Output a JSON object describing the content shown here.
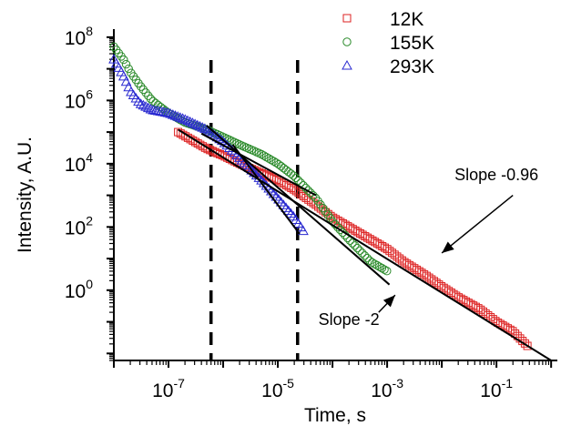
{
  "chart_data": {
    "type": "scatter",
    "title": "",
    "xlabel": "Time, s",
    "ylabel": "Intensity, A.U.",
    "x_scale": "log",
    "y_scale": "log",
    "xlim": [
      1e-08,
      1.3
    ],
    "ylim": [
      0.006,
      180000000.0
    ],
    "x_ticks": [
      {
        "value": 1e-07,
        "base": "10",
        "exp": "-7"
      },
      {
        "value": 1e-05,
        "base": "10",
        "exp": "-5"
      },
      {
        "value": 0.001,
        "base": "10",
        "exp": "-3"
      },
      {
        "value": 0.1,
        "base": "10",
        "exp": "-1"
      }
    ],
    "y_ticks": [
      {
        "value": 1,
        "base": "10",
        "exp": "0"
      },
      {
        "value": 100,
        "base": "10",
        "exp": "2"
      },
      {
        "value": 10000,
        "base": "10",
        "exp": "4"
      },
      {
        "value": 1000000,
        "base": "10",
        "exp": "6"
      },
      {
        "value": 100000000,
        "base": "10",
        "exp": "8"
      }
    ],
    "legend_position": "top-right",
    "grid": false,
    "series": [
      {
        "name": "12K",
        "marker": "square",
        "color": "#dd2222",
        "x": [
          1.5e-07,
          3e-07,
          5e-07,
          1e-06,
          2e-06,
          5e-06,
          1e-05,
          2e-05,
          5e-05,
          0.0001,
          0.0002,
          0.0005,
          0.001,
          0.002,
          0.005,
          0.01,
          0.02,
          0.05,
          0.1,
          0.2,
          0.4
        ],
        "y": [
          100000,
          50000,
          30000,
          18000,
          10000,
          5000,
          3000,
          1500,
          500,
          200,
          100,
          40,
          20,
          8,
          3,
          1.3,
          0.6,
          0.25,
          0.1,
          0.05,
          0.015
        ]
      },
      {
        "name": "155K",
        "marker": "circle",
        "color": "#2a8a2a",
        "x": [
          1e-08,
          1.5e-08,
          2e-08,
          3e-08,
          5e-08,
          1e-07,
          2e-07,
          5e-07,
          1e-06,
          2e-06,
          5e-06,
          1e-05,
          2e-05,
          5e-05,
          0.0001,
          0.0002,
          0.0005,
          0.001
        ],
        "y": [
          50000000,
          20000000,
          8000000,
          3000000,
          1000000,
          400000,
          200000,
          120000,
          70000,
          40000,
          20000,
          10000,
          4000,
          800,
          150,
          40,
          8,
          4
        ]
      },
      {
        "name": "293K",
        "marker": "triangle",
        "color": "#2a2ad0",
        "x": [
          1e-08,
          1.5e-08,
          2e-08,
          3e-08,
          5e-08,
          1e-07,
          2e-07,
          5e-07,
          1e-06,
          2e-06,
          5e-06,
          1e-05,
          2e-05,
          3e-05
        ],
        "y": [
          20000000,
          6000000,
          2000000,
          800000,
          500000,
          400000,
          250000,
          120000,
          50000,
          15000,
          3000,
          800,
          200,
          70
        ]
      }
    ],
    "fit_lines": [
      {
        "x": [
          1.5e-07,
          1.0
        ],
        "y": [
          120000,
          0.006
        ]
      },
      {
        "x": [
          4e-07,
          5e-05
        ],
        "y": [
          90000,
          1000
        ]
      },
      {
        "x": [
          1.5e-06,
          2.5e-05
        ],
        "y": [
          40000,
          60
        ]
      },
      {
        "x": [
          5e-07,
          0.0011
        ],
        "y": [
          160000,
          1.5
        ]
      }
    ],
    "vertical_dashed_lines": [
      6e-07,
      2.3e-05
    ],
    "annotations": [
      {
        "text": "Slope -0.96",
        "x": 0.1,
        "y": 3000,
        "arrow_from": [
          0.2,
          1000
        ],
        "arrow_to": [
          0.01,
          15
        ]
      },
      {
        "text": "Slope -2",
        "x": 0.0002,
        "y": 0.08,
        "arrow_from": [
          0.0007,
          0.2
        ],
        "arrow_to": [
          0.0014,
          0.7
        ]
      }
    ]
  }
}
